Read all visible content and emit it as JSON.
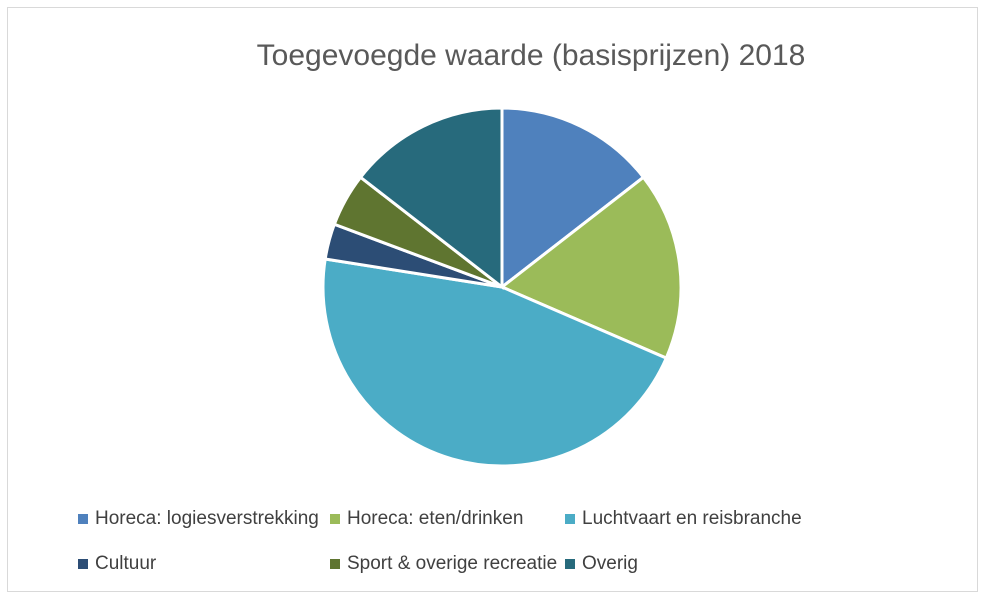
{
  "chart_data": {
    "type": "pie",
    "title": "Toegevoegde waarde (basisprijzen) 2018",
    "categories": [
      "Horeca: logiesverstrekking",
      "Horeca: eten/drinken",
      "Luchtvaart en reisbranche",
      "Cultuur",
      "Sport & overige recreatie",
      "Overig"
    ],
    "values": [
      14.5,
      17,
      46,
      3.2,
      4.8,
      14.5
    ],
    "colors": [
      "#4f81bd",
      "#9bbb59",
      "#4bacc6",
      "#2c4d75",
      "#5f7530",
      "#276a7c"
    ],
    "legend": "bottom"
  }
}
